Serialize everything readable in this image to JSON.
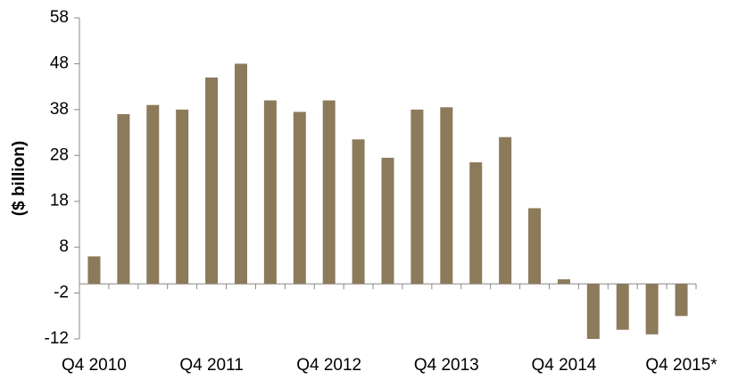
{
  "chart_data": {
    "type": "bar",
    "y_label": "($ billion)",
    "categories": [
      "Q4 2010",
      null,
      null,
      null,
      "Q4 2011",
      null,
      null,
      null,
      "Q4 2012",
      null,
      null,
      null,
      "Q4 2013",
      null,
      null,
      null,
      "Q4 2014",
      null,
      null,
      null,
      "Q4 2015*"
    ],
    "values": [
      6,
      37,
      39,
      38,
      45,
      48,
      40,
      37.5,
      40,
      31.5,
      27.5,
      38,
      38.5,
      26.5,
      32,
      16.5,
      1,
      -12,
      -10,
      -11,
      -7
    ],
    "color": "#8c7a5b",
    "ylim": [
      -12,
      58
    ],
    "yticks": [
      -12,
      -2,
      8,
      18,
      28,
      38,
      48,
      58
    ],
    "grid": false
  }
}
